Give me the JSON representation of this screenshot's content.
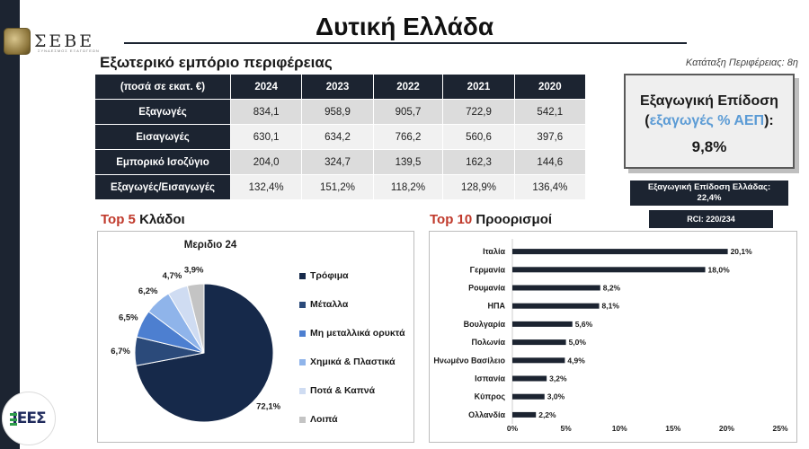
{
  "header": {
    "title": "Δυτική Ελλάδα",
    "section_title": "Εξωτερικό εμπόριο περιφέρειας",
    "ranking": "Κατάταξη Περιφέρειας: 8η"
  },
  "logos": {
    "seve_text": "ΣΕΒΕ",
    "seve_sub": "ΣΥΝΔΕΣΜΟΣ ΕΞΑΓΩΓΕΩΝ",
    "iees_text": "ΙΕΕΣ"
  },
  "trade_table": {
    "corner_header": "(ποσά σε εκατ. €)",
    "years": [
      "2024",
      "2023",
      "2022",
      "2021",
      "2020"
    ],
    "rows": [
      {
        "label": "Εξαγωγές",
        "values": [
          "834,1",
          "958,9",
          "905,7",
          "722,9",
          "542,1"
        ]
      },
      {
        "label": "Εισαγωγές",
        "values": [
          "630,1",
          "634,2",
          "766,2",
          "560,6",
          "397,6"
        ]
      },
      {
        "label": "Εμπορικό Ισοζύγιο",
        "values": [
          "204,0",
          "324,7",
          "139,5",
          "162,3",
          "144,6"
        ]
      },
      {
        "label": "Εξαγωγές/Εισαγωγές",
        "values": [
          "132,4%",
          "151,2%",
          "118,2%",
          "128,9%",
          "136,4%"
        ]
      }
    ]
  },
  "performance": {
    "title": "Εξαγωγική Επίδοση",
    "open": "(",
    "sub_highlight": "εξαγωγές % ΑΕΠ",
    "close": "):",
    "value": "9,8%",
    "greece_line1": "Εξαγωγική Επίδοση Ελλάδας:",
    "greece_line2": "22,4%",
    "rci": "RCI: 220/234"
  },
  "top5": {
    "prefix": "Top 5",
    "suffix": "Κλάδοι"
  },
  "top10": {
    "prefix": "Top 10",
    "suffix": "Προορισμοί"
  },
  "colors": {
    "navy": "#1c2431",
    "title_red": "#c0392b",
    "highlight_blue": "#5b9bd5"
  },
  "chart_data": [
    {
      "type": "pie",
      "title": "Μεριδιο 24",
      "categories": [
        "Τρόφιμα",
        "Μέταλλα",
        "Μη μεταλλικά ορυκτά",
        "Χημικά & Πλαστικά",
        "Ποτά & Καπνά",
        "Λοιπά"
      ],
      "values": [
        72.1,
        6.7,
        6.5,
        6.2,
        4.7,
        3.9
      ],
      "labels": [
        "72,1%",
        "6,7%",
        "6,5%",
        "6,2%",
        "4,7%",
        "3,9%"
      ],
      "colors": [
        "#16294a",
        "#2b4a7a",
        "#4d7fd0",
        "#8fb4ea",
        "#cfdcf2",
        "#c4c4c4"
      ],
      "legend_position": "right"
    },
    {
      "type": "bar",
      "orientation": "horizontal",
      "categories": [
        "Ιταλία",
        "Γερμανία",
        "Ρουμανία",
        "ΗΠΑ",
        "Βουλγαρία",
        "Πολωνία",
        "Ηνωμένο Βασίλειο",
        "Ισπανία",
        "Κύπρος",
        "Ολλανδία"
      ],
      "values": [
        20.1,
        18.0,
        8.2,
        8.1,
        5.6,
        5.0,
        4.9,
        3.2,
        3.0,
        2.2
      ],
      "labels": [
        "20,1%",
        "18,0%",
        "8,2%",
        "8,1%",
        "5,6%",
        "5,0%",
        "4,9%",
        "3,2%",
        "3,0%",
        "2,2%"
      ],
      "xlim": [
        0,
        25
      ],
      "xticks": [
        "0%",
        "5%",
        "10%",
        "15%",
        "20%",
        "25%"
      ],
      "color": "#1c2431",
      "grid": false
    }
  ]
}
